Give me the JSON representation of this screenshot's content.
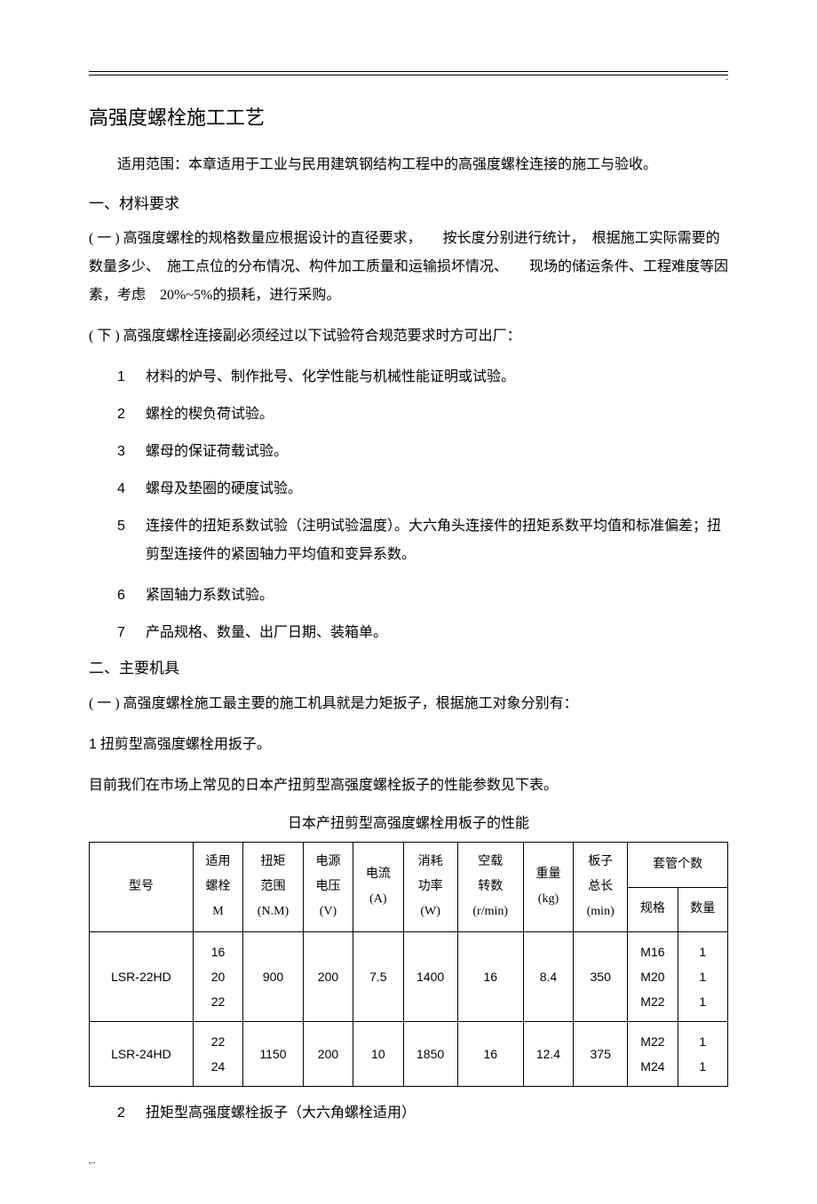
{
  "corner_mark": ".",
  "title": "高强度螺栓施工工艺",
  "scope": "适用范围：本章适用于工业与民用建筑钢结构工程中的高强度螺栓连接的施工与验收。",
  "section1": "一、材料要求",
  "s1_p1": "( 一 ) 高强度螺栓的规格数量应根据设计的直径要求，　　按长度分别进行统计，　根据施工实际需要的数量多少、　施工点位的分布情况、构件加工质量和运输损坏情况、　　现场的储运条件、工程难度等因素，考虑　20%~5%的损耗，进行采购。",
  "s1_p2": "( 下 ) 高强度螺栓连接副必须经过以下试验符合规范要求时方可出厂：",
  "s1_items": [
    "材料的炉号、制作批号、化学性能与机械性能证明或试验。",
    "螺栓的楔负荷试验。",
    "螺母的保证荷载试验。",
    "螺母及垫圈的硬度试验。"
  ],
  "s1_item5": "连接件的扭矩系数试验（注明试验温度）。大六角头连接件的扭矩系数平均值和标准偏差；扭剪型连接件的紧固轴力平均值和变异系数。",
  "s1_items_b": [
    "紧固轴力系数试验。",
    "产品规格、数量、出厂日期、装箱单。"
  ],
  "section2": "二、主要机具",
  "s2_p1": "( 一 ) 高强度螺栓施工最主要的施工机具就是力矩扳子，根据施工对象分别有：",
  "s2_p2_num": "1",
  "s2_p2": "扭剪型高强度螺栓用扳子。",
  "s2_p3": "目前我们在市场上常见的日本产扭剪型高强度螺栓扳子的性能参数见下表。",
  "table_caption": "日本产扭剪型高强度螺栓用板子的性能",
  "table": {
    "headers": {
      "model": "型号",
      "bolt": "适用螺栓M",
      "torque": "扭矩范围(N.M)",
      "voltage": "电源电压(V)",
      "current": "电流(A)",
      "power": "消耗功率(W)",
      "rpm": "空载转数(r/min)",
      "weight": "重量(kg)",
      "length": "板子总长(min)",
      "sleeve": "套管个数",
      "spec": "规格",
      "qty": "数量"
    },
    "rows": [
      {
        "model": "LSR-22HD",
        "bolts": [
          "16",
          "20",
          "22"
        ],
        "torque": "900",
        "voltage": "200",
        "current": "7.5",
        "power": "1400",
        "rpm": "16",
        "weight": "8.4",
        "length": "350",
        "specs": [
          "M16",
          "M20",
          "M22"
        ],
        "qtys": [
          "1",
          "1",
          "1"
        ]
      },
      {
        "model": "LSR-24HD",
        "bolts": [
          "22",
          "24"
        ],
        "torque": "1150",
        "voltage": "200",
        "current": "10",
        "power": "1850",
        "rpm": "16",
        "weight": "12.4",
        "length": "375",
        "specs": [
          "M22",
          "M24"
        ],
        "qtys": [
          "1",
          "1"
        ]
      }
    ]
  },
  "s2_last_num": "2",
  "s2_last": "扭矩型高强度螺栓扳子（大六角螺栓适用）",
  "footer_mark": ",.."
}
